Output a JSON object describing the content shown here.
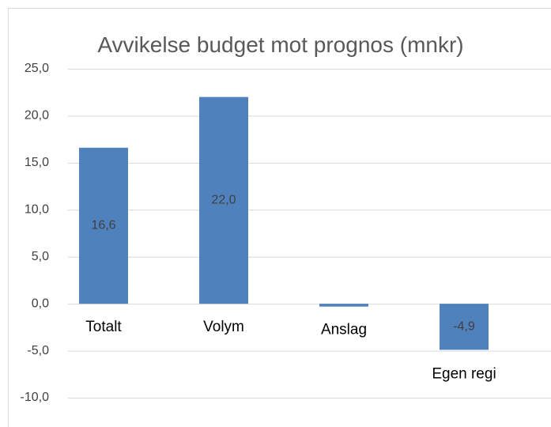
{
  "chart_data": {
    "type": "bar",
    "title": "Avvikelse budget mot prognos (mnkr)",
    "categories": [
      "Totalt",
      "Volym",
      "Anslag",
      "Egen regi"
    ],
    "values": [
      16.6,
      22.0,
      -0.3,
      -4.9
    ],
    "value_labels": [
      "16,6",
      "22,0",
      null,
      "-4,9"
    ],
    "color": "#4f81bd",
    "ylim": [
      -10,
      25
    ],
    "yticks": [
      {
        "value": -10,
        "label": "-10,0"
      },
      {
        "value": -5,
        "label": "-5,0"
      },
      {
        "value": 0,
        "label": "0,0"
      },
      {
        "value": 5,
        "label": "5,0"
      },
      {
        "value": 10,
        "label": "10,0"
      },
      {
        "value": 15,
        "label": "15,0"
      },
      {
        "value": 20,
        "label": "20,0"
      },
      {
        "value": 25,
        "label": "25,0"
      }
    ],
    "grid": true
  }
}
